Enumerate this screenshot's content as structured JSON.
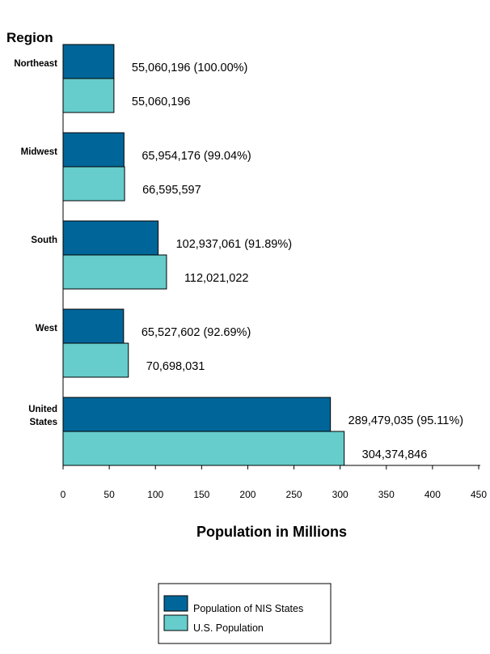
{
  "chart_data": {
    "type": "bar",
    "orientation": "horizontal",
    "y_axis_title": "Region",
    "xlabel": "Population in Millions",
    "xlim": [
      0,
      450
    ],
    "xticks": [
      0,
      50,
      100,
      150,
      200,
      250,
      300,
      350,
      400,
      450
    ],
    "grid": false,
    "legend_position": "bottom-center",
    "categories": [
      "Northeast",
      "Midwest",
      "South",
      "West",
      "United States"
    ],
    "series": [
      {
        "name": "Population of NIS States",
        "color": "#006699",
        "values": [
          55.060196,
          65.954176,
          102.937061,
          65.527602,
          289.479035
        ],
        "labels": [
          "55,060,196  (100.00%)",
          "65,954,176  (99.04%)",
          "102,937,061  (91.89%)",
          "65,527,602  (92.69%)",
          "289,479,035  (95.11%)"
        ]
      },
      {
        "name": "U.S. Population",
        "color": "#66cccc",
        "values": [
          55.060196,
          66.595597,
          112.021022,
          70.698031,
          304.374846
        ],
        "labels": [
          "55,060,196",
          "66,595,597",
          "112,021,022",
          "70,698,031",
          "304,374,846"
        ]
      }
    ]
  }
}
